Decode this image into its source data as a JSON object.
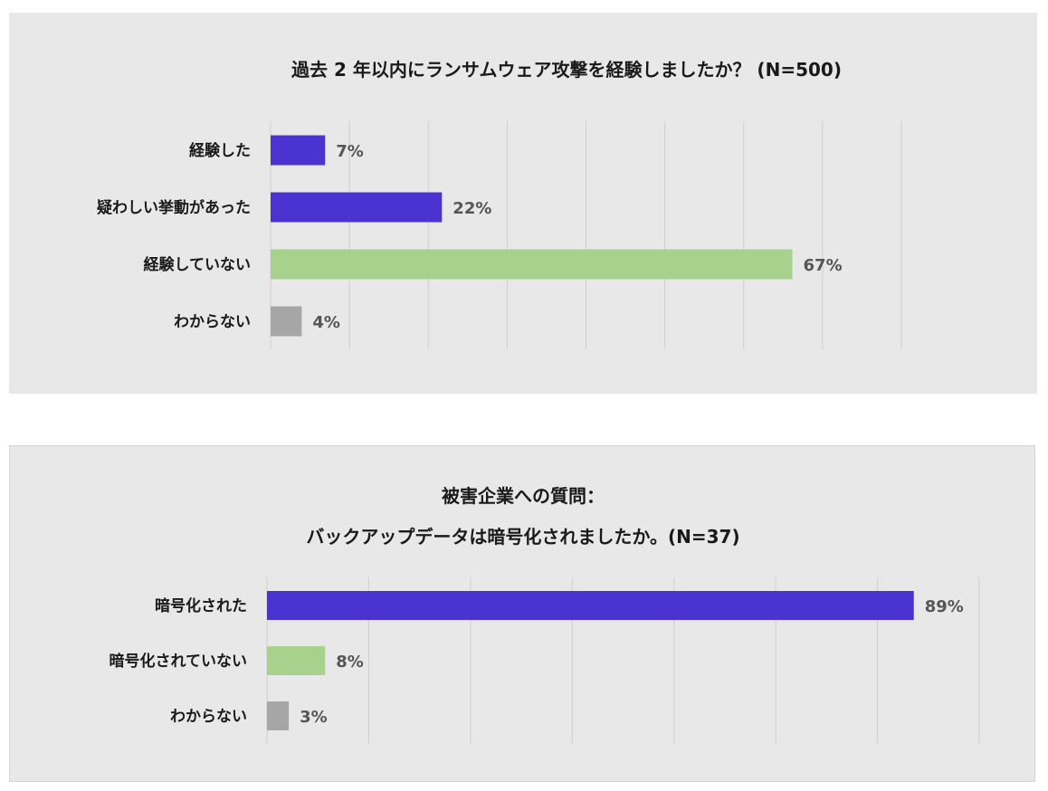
{
  "chart_data": [
    {
      "type": "bar",
      "orientation": "horizontal",
      "title": "過去 2 年以内にランサムウェア攻撃を経験しましたか？ (N=500)",
      "categories": [
        "経験した",
        "疑わしい挙動があった",
        "経験していない",
        "わからない"
      ],
      "values": [
        7,
        22,
        67,
        4
      ],
      "value_labels": [
        "7%",
        "22%",
        "67%",
        "4%"
      ],
      "colors": [
        "#4b33d1",
        "#4b33d1",
        "#a9d18e",
        "#a6a6a6"
      ],
      "xlim": [
        0,
        81
      ],
      "grid": true,
      "xlabel": "",
      "ylabel": ""
    },
    {
      "type": "bar",
      "orientation": "horizontal",
      "title": "被害企業への質問：",
      "subtitle": "バックアップデータは暗号化されましたか。(N=37)",
      "categories": [
        "暗号化された",
        "暗号化されていない",
        "わからない"
      ],
      "values": [
        89,
        8,
        3
      ],
      "value_labels": [
        "89%",
        "8%",
        "3%"
      ],
      "colors": [
        "#4b33d1",
        "#a9d18e",
        "#a6a6a6"
      ],
      "xlim": [
        0,
        98
      ],
      "grid": true,
      "xlabel": "",
      "ylabel": ""
    }
  ]
}
